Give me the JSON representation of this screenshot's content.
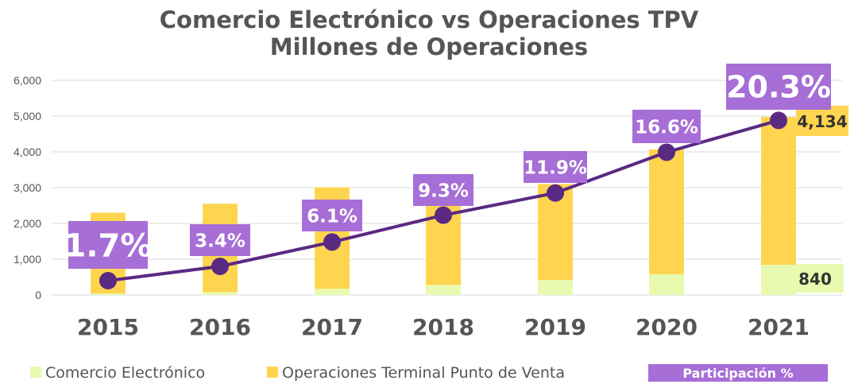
{
  "chart_data": {
    "type": "bar",
    "title": "Comercio Electrónico vs Operaciones TPV",
    "subtitle": "Millones de Operaciones",
    "categories": [
      "2015",
      "2016",
      "2017",
      "2018",
      "2019",
      "2020",
      "2021"
    ],
    "ylim": [
      0,
      6000
    ],
    "yticks": [
      "0",
      "1,000",
      "2,000",
      "3,000",
      "4,000",
      "5,000",
      "6,000"
    ],
    "ytick_values": [
      0,
      1000,
      2000,
      3000,
      4000,
      5000,
      6000
    ],
    "grid": true,
    "series": [
      {
        "name": "Comercio Electrónico",
        "color": "#E8FAB0",
        "values": [
          40,
          80,
          170,
          280,
          420,
          580,
          840
        ]
      },
      {
        "name": "Operaciones Terminal Punto de Venta",
        "color": "#FFD54F",
        "values": [
          2260,
          2470,
          2840,
          2570,
          2680,
          3490,
          4134
        ]
      }
    ],
    "line": {
      "name": "Participación %",
      "color": "#5A2A82",
      "y_values": [
        400,
        800,
        1480,
        2230,
        2850,
        3990,
        4880
      ],
      "labels": [
        "1.7%",
        "3.4%",
        "6.1%",
        "9.3%",
        "11.9%",
        "16.6%",
        "20.3%"
      ],
      "label_color": "#A66ED6"
    },
    "data_labels": {
      "ecommerce_2021": "840",
      "tpv_2021": "4,134"
    },
    "legend": {
      "position": "bottom",
      "items": [
        "Comercio Electrónico",
        "Operaciones Terminal Punto de Venta",
        "Participación %"
      ]
    }
  }
}
